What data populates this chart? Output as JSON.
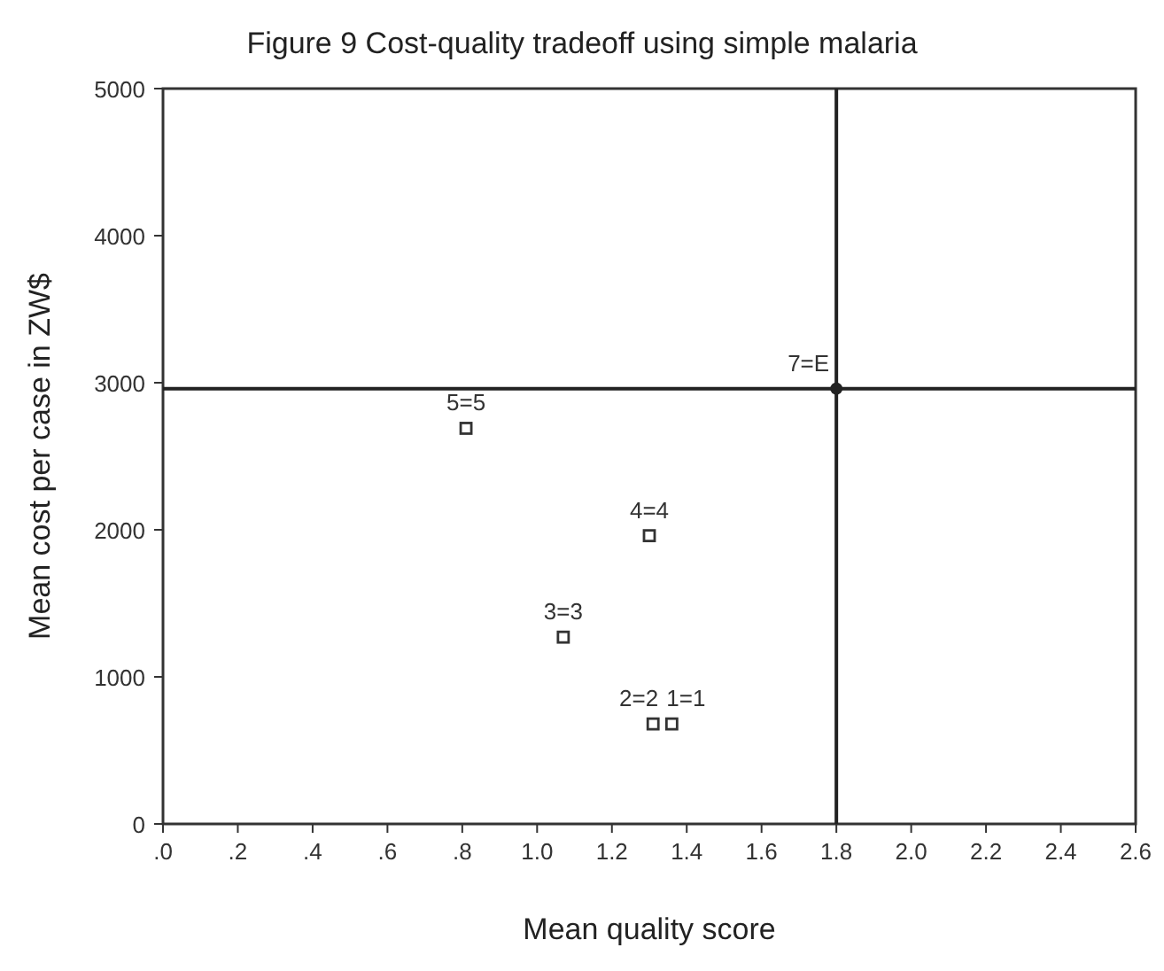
{
  "chart_data": {
    "type": "scatter",
    "title": "Figure 9 Cost-quality tradeoff using simple malaria",
    "xlabel": "Mean quality score",
    "ylabel": "Mean cost per case in ZW$",
    "xlim": [
      0,
      2.6
    ],
    "ylim": [
      0,
      5000
    ],
    "xticks": [
      {
        "value": 0,
        "label": ".0"
      },
      {
        "value": 0.2,
        "label": ".2"
      },
      {
        "value": 0.4,
        "label": ".4"
      },
      {
        "value": 0.6,
        "label": ".6"
      },
      {
        "value": 0.8,
        "label": ".8"
      },
      {
        "value": 1,
        "label": "1.0"
      },
      {
        "value": 1.2,
        "label": "1.2"
      },
      {
        "value": 1.4,
        "label": "1.4"
      },
      {
        "value": 1.6,
        "label": "1.6"
      },
      {
        "value": 1.8,
        "label": "1.8"
      },
      {
        "value": 2,
        "label": "2.0"
      },
      {
        "value": 2.2,
        "label": "2.2"
      },
      {
        "value": 2.4,
        "label": "2.4"
      },
      {
        "value": 2.6,
        "label": "2.6"
      }
    ],
    "yticks": [
      0,
      1000,
      2000,
      3000,
      4000,
      5000
    ],
    "grid": false,
    "series": [
      {
        "marker": "square",
        "color": "#333333",
        "x": [
          1.36,
          1.31,
          1.07,
          1.3,
          0.81
        ],
        "values": [
          680,
          680,
          1270,
          1960,
          2690
        ]
      },
      {
        "marker": "circle",
        "color": "#222222",
        "x": [
          1.8
        ],
        "values": [
          2960
        ]
      }
    ],
    "ref_lines": [
      {
        "axis": "x",
        "value": 1.8,
        "color": "#222222"
      },
      {
        "axis": "y",
        "value": 2960,
        "color": "#222222"
      }
    ],
    "annotations": [
      {
        "text": "1=1",
        "x": 1.36,
        "y": 680
      },
      {
        "text": "2=2",
        "x": 1.31,
        "y": 680
      },
      {
        "text": "3=3",
        "x": 1.07,
        "y": 1270
      },
      {
        "text": "4=4",
        "x": 1.3,
        "y": 1960
      },
      {
        "text": "5=5",
        "x": 0.81,
        "y": 2690
      },
      {
        "text": "7=E",
        "x": 1.8,
        "y": 2960
      }
    ]
  }
}
